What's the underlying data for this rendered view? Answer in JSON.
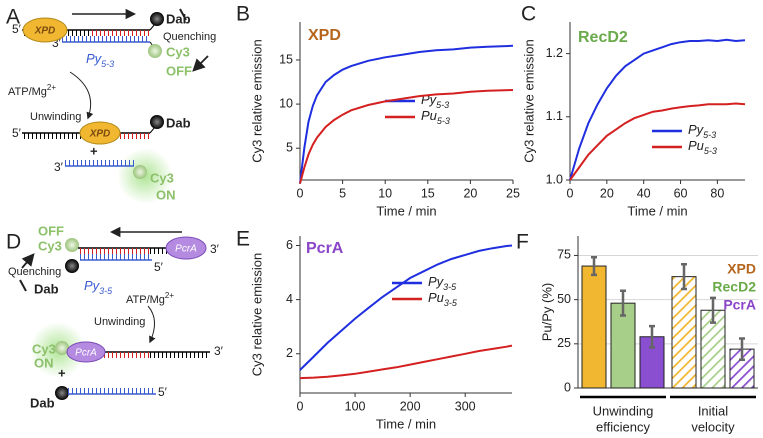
{
  "diagrams": [
    {
      "panel": "A",
      "enzyme": "XPD",
      "dab": "Dab",
      "cy3": "Cy3",
      "quenching": "Quenching",
      "off": "OFF",
      "on": "ON",
      "strand": "Py",
      "strand_sub": "5-3",
      "atp": "ATP/Mg",
      "atp_sup": "2+",
      "step": "Unwinding",
      "five": "5′",
      "three": "3′",
      "plus": "+"
    },
    {
      "panel": "D",
      "enzyme": "PcrA",
      "dab": "Dab",
      "cy3": "Cy3",
      "quenching": "Quenching",
      "off": "OFF",
      "on": "ON",
      "strand": "Py",
      "strand_sub": "3-5",
      "atp": "ATP/Mg",
      "atp_sup": "2+",
      "step": "Unwinding",
      "five": "5′",
      "three": "3′",
      "plus": "+"
    }
  ],
  "chart_data": [
    {
      "type": "line",
      "panel": "B",
      "title": "XPD",
      "title_color": "#b5651d",
      "xlabel": "Time / min",
      "ylabel": "Cy3 relative emission",
      "x": [
        0,
        0.5,
        1,
        1.5,
        2,
        3,
        4,
        5,
        6,
        8,
        10,
        12,
        14,
        16,
        18,
        20,
        22,
        25
      ],
      "series": [
        {
          "name": "Py",
          "name_sub": "5-3",
          "color": "#1f2fe0",
          "values": [
            1,
            5,
            8,
            9.8,
            11,
            12.5,
            13.3,
            13.9,
            14.3,
            14.9,
            15.3,
            15.6,
            15.9,
            16.1,
            16.2,
            16.4,
            16.5,
            16.6
          ]
        },
        {
          "name": "Pu",
          "name_sub": "5-3",
          "color": "#d42020",
          "values": [
            1,
            2.8,
            4.3,
            5.4,
            6.2,
            7.4,
            8.2,
            8.8,
            9.3,
            9.9,
            10.3,
            10.6,
            10.9,
            11.1,
            11.2,
            11.4,
            11.5,
            11.6
          ]
        }
      ],
      "xlim": [
        0,
        25
      ],
      "ylim": [
        1.4,
        19.3
      ],
      "xticks": [
        0,
        5,
        10,
        15,
        20,
        25
      ],
      "yticks": [
        5,
        10,
        15
      ]
    },
    {
      "type": "line",
      "panel": "C",
      "title": "RecD2",
      "title_color": "#6aaa4a",
      "xlabel": "Time / min",
      "ylabel": "Cy3 relative emission",
      "x": [
        0,
        5,
        10,
        15,
        20,
        25,
        30,
        35,
        40,
        45,
        50,
        55,
        60,
        65,
        70,
        75,
        80,
        85,
        90,
        95
      ],
      "series": [
        {
          "name": "Py",
          "name_sub": "5-3",
          "color": "#1f2fe0",
          "values": [
            1.0,
            1.05,
            1.09,
            1.12,
            1.145,
            1.165,
            1.18,
            1.19,
            1.2,
            1.205,
            1.21,
            1.215,
            1.218,
            1.22,
            1.22,
            1.221,
            1.22,
            1.222,
            1.22,
            1.221
          ]
        },
        {
          "name": "Pu",
          "name_sub": "5-3",
          "color": "#d42020",
          "values": [
            1.0,
            1.02,
            1.04,
            1.055,
            1.07,
            1.08,
            1.09,
            1.098,
            1.103,
            1.108,
            1.11,
            1.113,
            1.115,
            1.117,
            1.118,
            1.12,
            1.12,
            1.12,
            1.121,
            1.12
          ]
        }
      ],
      "xlim": [
        0,
        95
      ],
      "ylim": [
        1.0,
        1.25
      ],
      "xticks": [
        0,
        20,
        40,
        60,
        80
      ],
      "yticks": [
        {
          "value": 1.0,
          "label": "1.0"
        },
        {
          "value": 1.1,
          "label": "1.1"
        },
        {
          "value": 1.2,
          "label": "1.2"
        }
      ]
    },
    {
      "type": "line",
      "panel": "E",
      "title": "PcrA",
      "title_color": "#8a45c8",
      "xlabel": "Time / min",
      "ylabel": "Cy3 relative emission",
      "x": [
        0,
        25,
        50,
        75,
        100,
        125,
        150,
        175,
        200,
        225,
        250,
        275,
        300,
        325,
        350,
        375,
        385
      ],
      "series": [
        {
          "name": "Py",
          "name_sub": "3-5",
          "color": "#1f2fe0",
          "values": [
            1.4,
            1.9,
            2.4,
            2.85,
            3.3,
            3.7,
            4.1,
            4.45,
            4.8,
            5.05,
            5.3,
            5.5,
            5.65,
            5.8,
            5.9,
            5.98,
            6.0
          ]
        },
        {
          "name": "Pu",
          "name_sub": "3-5",
          "color": "#d42020",
          "values": [
            1.1,
            1.12,
            1.15,
            1.2,
            1.26,
            1.34,
            1.42,
            1.5,
            1.6,
            1.7,
            1.8,
            1.9,
            2.0,
            2.1,
            2.18,
            2.26,
            2.3
          ]
        }
      ],
      "xlim": [
        0,
        385
      ],
      "ylim": [
        0.55,
        6.35
      ],
      "xticks": [
        0,
        100,
        200,
        300
      ],
      "yticks": [
        2,
        4,
        6
      ]
    },
    {
      "type": "bar",
      "panel": "F",
      "ylabel": "Pu/Py (%)",
      "categories": [
        [
          "Unwinding",
          "efficiency"
        ],
        [
          "Initial",
          "velocity"
        ]
      ],
      "hatch": [
        false,
        true
      ],
      "series": [
        {
          "name": "XPD",
          "color": "#f2b731",
          "label_color": "#b5651d",
          "values": [
            69,
            63
          ],
          "errors": [
            5,
            7
          ]
        },
        {
          "name": "RecD2",
          "color": "#a8cf8a",
          "label_color": "#6aaa4a",
          "values": [
            48,
            44
          ],
          "errors": [
            7,
            7
          ]
        },
        {
          "name": "PcrA",
          "color": "#8a4fd0",
          "label_color": "#8a45c8",
          "values": [
            29,
            22
          ],
          "errors": [
            6,
            6
          ]
        }
      ],
      "ylim": [
        0,
        86
      ],
      "yticks": [
        0,
        25,
        50,
        75
      ],
      "grid": true
    }
  ]
}
